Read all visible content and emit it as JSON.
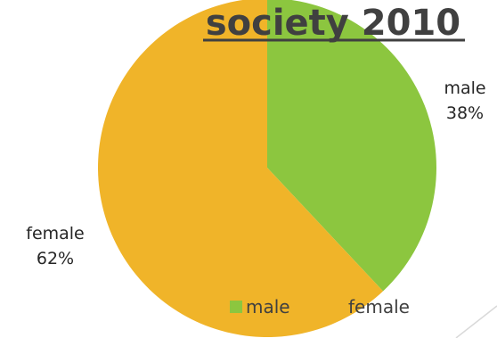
{
  "chart_data": {
    "type": "pie",
    "title": "society 2010",
    "categories": [
      "male",
      "female"
    ],
    "values": [
      38,
      62
    ],
    "unit": "%",
    "data_labels": [
      {
        "category": "male",
        "percent": "38%"
      },
      {
        "category": "female",
        "percent": "62%"
      }
    ],
    "colors": [
      "#8cc63f",
      "#f0b429"
    ],
    "legend": {
      "placement": "bottom-right",
      "entries": [
        "male",
        "female"
      ]
    }
  }
}
